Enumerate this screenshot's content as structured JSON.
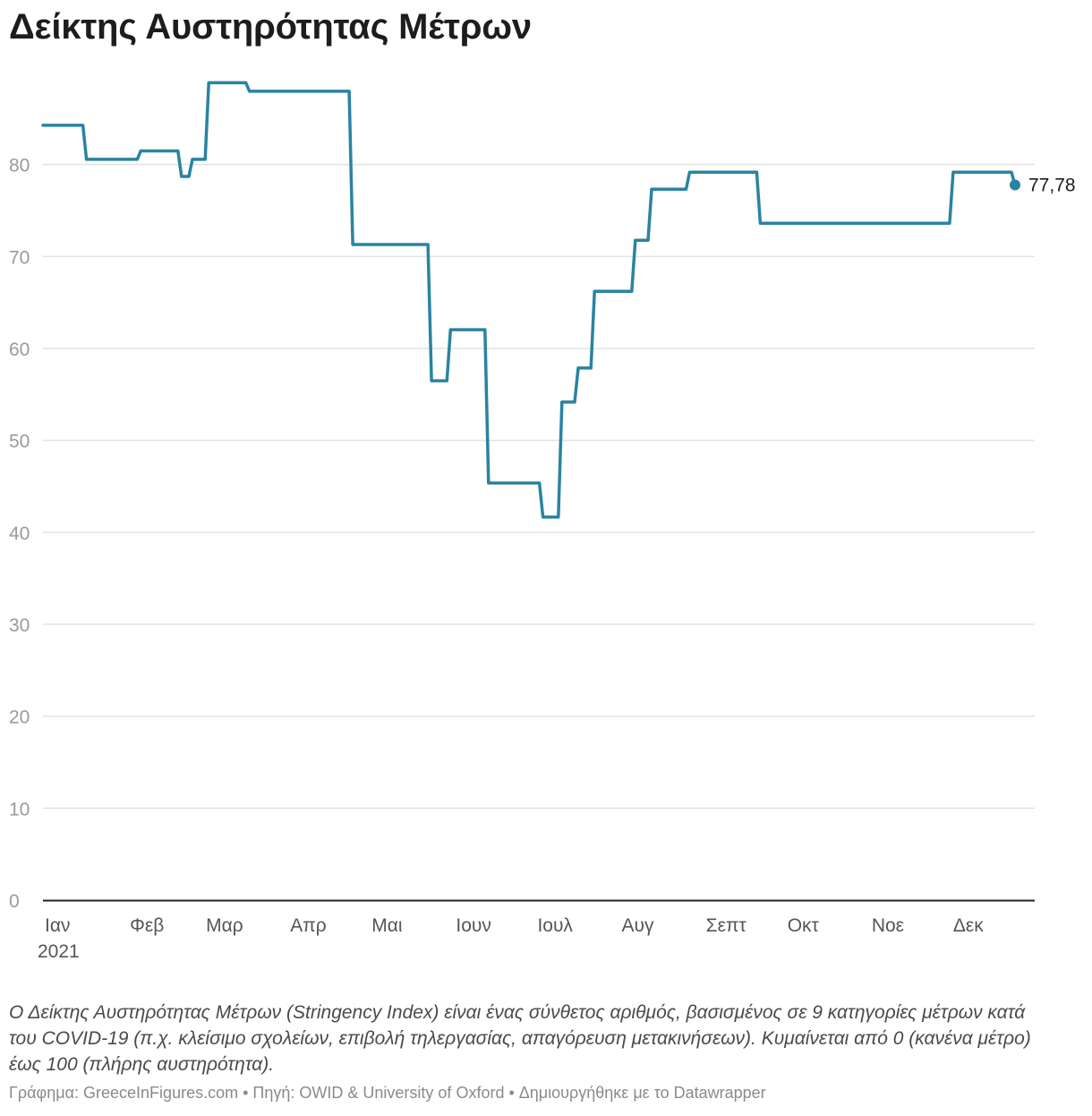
{
  "chart_data": {
    "type": "line",
    "title": "Δείκτης Αυστηρότητας Μέτρων",
    "xlabel": "",
    "ylabel": "",
    "ylim": [
      0,
      90
    ],
    "y_ticks": [
      0,
      10,
      20,
      30,
      40,
      50,
      60,
      70,
      80
    ],
    "x_range": [
      "2021-01-01",
      "2022-01-01"
    ],
    "x_ticks": [
      {
        "date": "2021-01-01",
        "label": "Ιαν",
        "sublabel": "2021"
      },
      {
        "date": "2021-02-01",
        "label": "Φεβ"
      },
      {
        "date": "2021-03-01",
        "label": "Μαρ"
      },
      {
        "date": "2021-04-01",
        "label": "Απρ"
      },
      {
        "date": "2021-05-01",
        "label": "Μαι"
      },
      {
        "date": "2021-06-01",
        "label": "Ιουν"
      },
      {
        "date": "2021-07-01",
        "label": "Ιουλ"
      },
      {
        "date": "2021-08-01",
        "label": "Αυγ"
      },
      {
        "date": "2021-09-01",
        "label": "Σεπτ"
      },
      {
        "date": "2021-10-01",
        "label": "Οκτ"
      },
      {
        "date": "2021-11-01",
        "label": "Νοε"
      },
      {
        "date": "2021-12-01",
        "label": "Δεκ"
      }
    ],
    "grid": true,
    "line_color": "#2a83a2",
    "end_label": "77,78",
    "series": [
      {
        "step": true,
        "points": [
          {
            "date": "2021-01-01",
            "value": 84.26
          },
          {
            "date": "2021-01-17",
            "value": 80.56
          },
          {
            "date": "2021-02-06",
            "value": 81.48
          },
          {
            "date": "2021-02-21",
            "value": 78.7
          },
          {
            "date": "2021-02-25",
            "value": 80.56
          },
          {
            "date": "2021-03-03",
            "value": 88.89
          },
          {
            "date": "2021-03-18",
            "value": 87.96
          },
          {
            "date": "2021-04-25",
            "value": 71.3
          },
          {
            "date": "2021-05-24",
            "value": 56.48
          },
          {
            "date": "2021-05-31",
            "value": 62.04
          },
          {
            "date": "2021-06-14",
            "value": 45.37
          },
          {
            "date": "2021-07-04",
            "value": 41.67
          },
          {
            "date": "2021-07-11",
            "value": 54.17
          },
          {
            "date": "2021-07-17",
            "value": 57.87
          },
          {
            "date": "2021-07-23",
            "value": 66.2
          },
          {
            "date": "2021-08-07",
            "value": 71.76
          },
          {
            "date": "2021-08-13",
            "value": 77.31
          },
          {
            "date": "2021-08-27",
            "value": 79.17
          },
          {
            "date": "2021-09-22",
            "value": 73.61
          },
          {
            "date": "2021-12-02",
            "value": 79.17
          },
          {
            "date": "2021-12-29",
            "value": 77.78
          },
          {
            "date": "2022-01-01",
            "value": 77.78
          }
        ]
      }
    ]
  },
  "notes": "Ο Δείκτης Αυστηρότητας Μέτρων (Stringency Index) είναι ένας σύνθετος αριθμός, βασισμένος σε 9 κατηγορίες μέτρων κατά του COVID-19 (π.χ. κλείσιμο σχολείων, επιβολή τηλεργασίας, απαγόρευση μετακινήσεων). Κυμαίνεται από 0 (κανένα μέτρο) έως 100 (πλήρης αυστηρότητα).",
  "footer": "Γράφημα: GreeceInFigures.com • Πηγή: OWID & University of Oxford • Δημιουργήθηκε με το Datawrapper"
}
